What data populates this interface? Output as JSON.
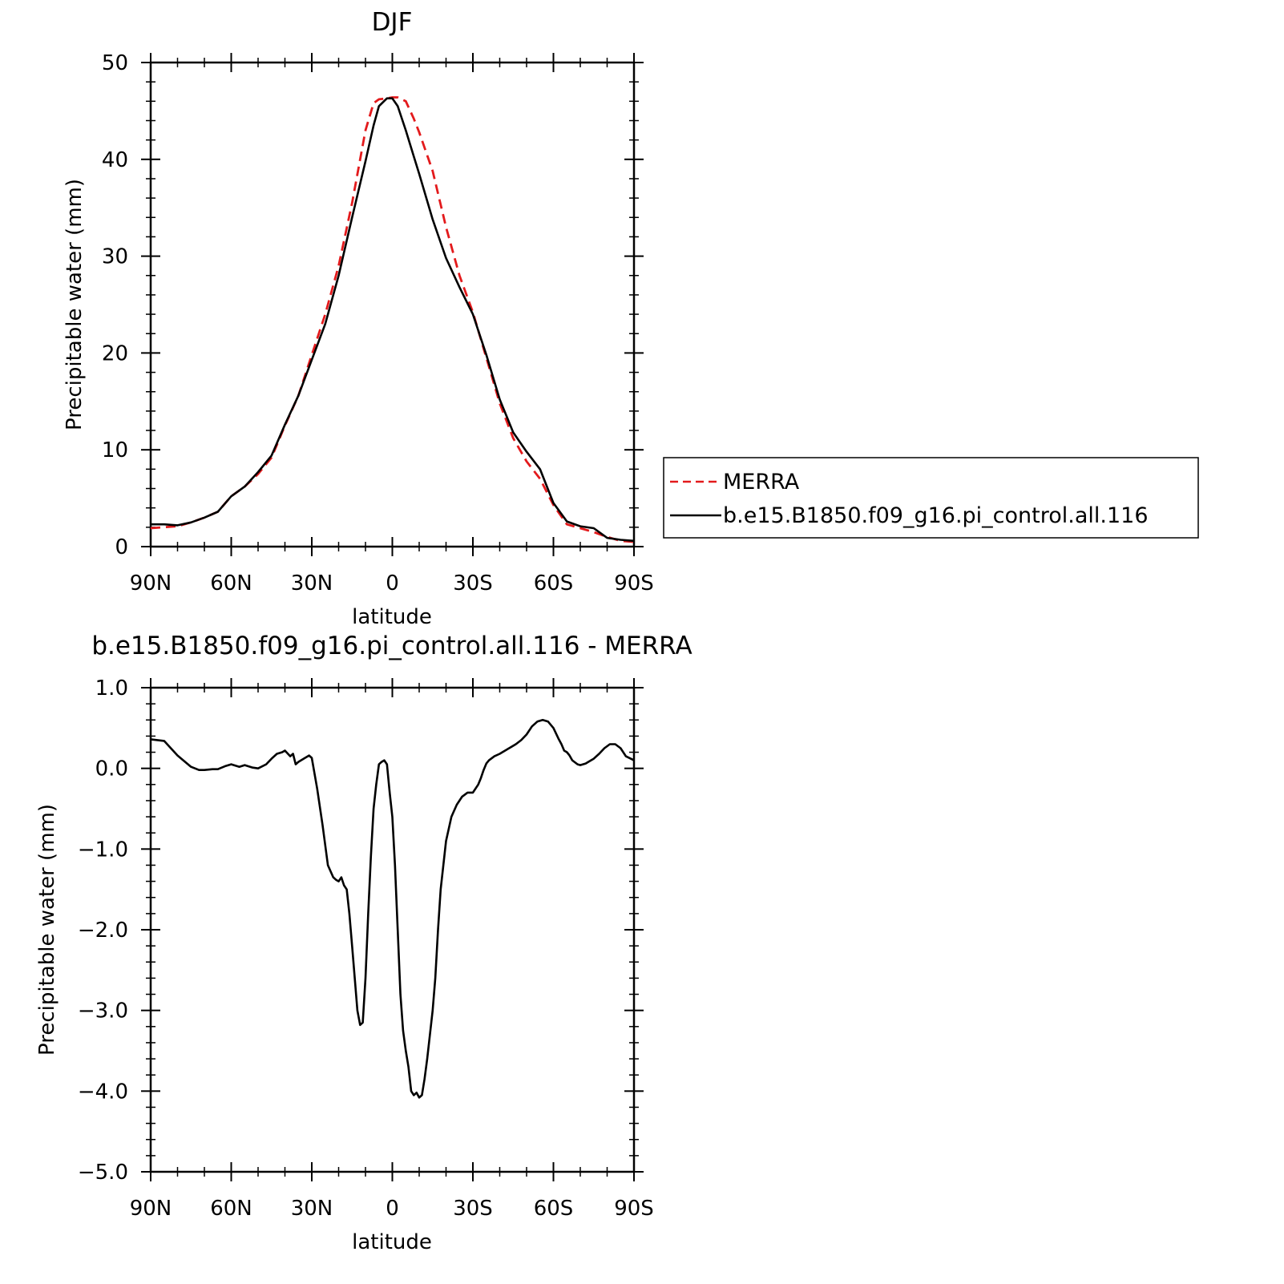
{
  "chart_data": [
    {
      "type": "line",
      "title": "DJF",
      "xlabel": "latitude",
      "ylabel": "Precipitable water (mm)",
      "xlim": [
        90,
        -90
      ],
      "ylim": [
        0,
        50
      ],
      "xticks": [
        90,
        60,
        30,
        0,
        -30,
        -60,
        -90
      ],
      "xtick_labels": [
        "90N",
        "60N",
        "30N",
        "0",
        "30S",
        "60S",
        "90S"
      ],
      "yticks": [
        0,
        10,
        20,
        30,
        40,
        50
      ],
      "ytick_labels": [
        "0",
        "10",
        "20",
        "30",
        "40",
        "50"
      ],
      "legend_position": "right",
      "series": [
        {
          "name": "MERRA",
          "color": "#e31a1c",
          "dash": true,
          "x": [
            90,
            85,
            80,
            75,
            70,
            65,
            60,
            55,
            50,
            45,
            40,
            35,
            30,
            25,
            20,
            15,
            10,
            7,
            5,
            2,
            0,
            -2,
            -5,
            -8,
            -10,
            -15,
            -20,
            -25,
            -30,
            -35,
            -40,
            -45,
            -50,
            -55,
            -60,
            -65,
            -70,
            -75,
            -80,
            -85,
            -90
          ],
          "y": [
            1.9,
            2.0,
            2.1,
            2.5,
            3.0,
            3.6,
            5.2,
            6.2,
            7.5,
            9.2,
            12.5,
            15.6,
            19.8,
            24.0,
            29.0,
            35.5,
            43.0,
            45.8,
            46.2,
            46.3,
            46.4,
            46.4,
            46.0,
            44.2,
            42.8,
            38.8,
            33.0,
            28.0,
            24.2,
            19.5,
            14.8,
            11.2,
            8.8,
            7.0,
            4.3,
            2.3,
            1.9,
            1.5,
            1.0,
            0.6,
            0.5
          ]
        },
        {
          "name": "b.e15.B1850.f09_g16.pi_control.all.116",
          "color": "#000000",
          "dash": false,
          "x": [
            90,
            85,
            80,
            75,
            70,
            65,
            60,
            55,
            50,
            45,
            40,
            35,
            30,
            25,
            20,
            15,
            10,
            7,
            5,
            2,
            0,
            -2,
            -5,
            -8,
            -10,
            -15,
            -20,
            -25,
            -30,
            -35,
            -40,
            -45,
            -50,
            -55,
            -60,
            -65,
            -70,
            -75,
            -80,
            -85,
            -90
          ],
          "y": [
            2.3,
            2.3,
            2.2,
            2.5,
            3.0,
            3.6,
            5.2,
            6.2,
            7.7,
            9.4,
            12.6,
            15.6,
            19.3,
            23.0,
            28.0,
            34.0,
            39.8,
            43.5,
            45.5,
            46.3,
            46.3,
            45.5,
            43.0,
            40.3,
            38.5,
            33.8,
            29.8,
            26.8,
            24.0,
            19.8,
            15.2,
            11.8,
            9.8,
            8.0,
            4.5,
            2.6,
            2.1,
            1.9,
            0.9,
            0.7,
            0.6
          ]
        }
      ]
    },
    {
      "type": "line",
      "title": "b.e15.B1850.f09_g16.pi_control.all.116 - MERRA",
      "xlabel": "latitude",
      "ylabel": "Precipitable water (mm)",
      "xlim": [
        90,
        -90
      ],
      "ylim": [
        -5.0,
        1.0
      ],
      "xticks": [
        90,
        60,
        30,
        0,
        -30,
        -60,
        -90
      ],
      "xtick_labels": [
        "90N",
        "60N",
        "30N",
        "0",
        "30S",
        "60S",
        "90S"
      ],
      "yticks": [
        1.0,
        0.0,
        -1.0,
        -2.0,
        -3.0,
        -4.0,
        -5.0
      ],
      "ytick_labels": [
        "1.0",
        "0.0",
        "−1.0",
        "−2.0",
        "−3.0",
        "−4.0",
        "−5.0"
      ],
      "series": [
        {
          "color": "#000000",
          "dash": false,
          "x": [
            90,
            85,
            80,
            75,
            72,
            70,
            67,
            65,
            62,
            60,
            57,
            55,
            52,
            50,
            47,
            45,
            43,
            41,
            40,
            38,
            37,
            36,
            35,
            33,
            31,
            30,
            28,
            26,
            24,
            22,
            21,
            20,
            19,
            18,
            17,
            16,
            15,
            14,
            13,
            12,
            11,
            10,
            9,
            8,
            7,
            6,
            5,
            4,
            3,
            2,
            1,
            0,
            -1,
            -2,
            -3,
            -4,
            -5,
            -6,
            -7,
            -8,
            -9,
            -10,
            -11,
            -12,
            -13,
            -14,
            -15,
            -16,
            -17,
            -18,
            -20,
            -22,
            -24,
            -26,
            -28,
            -30,
            -32,
            -33,
            -34,
            -35,
            -36,
            -38,
            -40,
            -41,
            -42,
            -44,
            -46,
            -48,
            -50,
            -52,
            -54,
            -56,
            -58,
            -60,
            -62,
            -63,
            -64,
            -65,
            -66,
            -67,
            -69,
            -70,
            -72,
            -73,
            -75,
            -77,
            -79,
            -81,
            -83,
            -85,
            -87,
            -90
          ],
          "y": [
            0.36,
            0.34,
            0.16,
            0.02,
            -0.02,
            -0.02,
            -0.01,
            -0.01,
            0.03,
            0.05,
            0.02,
            0.04,
            0.01,
            0.0,
            0.05,
            0.12,
            0.18,
            0.2,
            0.22,
            0.15,
            0.18,
            0.05,
            0.08,
            0.12,
            0.16,
            0.13,
            -0.25,
            -0.7,
            -1.2,
            -1.35,
            -1.38,
            -1.4,
            -1.35,
            -1.45,
            -1.5,
            -1.8,
            -2.2,
            -2.6,
            -3.0,
            -3.18,
            -3.15,
            -2.6,
            -1.8,
            -1.1,
            -0.5,
            -0.2,
            0.05,
            0.08,
            0.1,
            0.05,
            -0.3,
            -0.6,
            -1.2,
            -2.0,
            -2.8,
            -3.25,
            -3.5,
            -3.7,
            -4.0,
            -4.05,
            -4.02,
            -4.08,
            -4.05,
            -3.85,
            -3.6,
            -3.3,
            -3.0,
            -2.6,
            -2.0,
            -1.5,
            -0.9,
            -0.6,
            -0.45,
            -0.35,
            -0.3,
            -0.3,
            -0.2,
            -0.12,
            -0.02,
            0.06,
            0.1,
            0.15,
            0.18,
            0.2,
            0.22,
            0.26,
            0.3,
            0.35,
            0.42,
            0.52,
            0.58,
            0.6,
            0.58,
            0.5,
            0.36,
            0.3,
            0.22,
            0.2,
            0.16,
            0.1,
            0.05,
            0.04,
            0.06,
            0.08,
            0.12,
            0.18,
            0.25,
            0.3,
            0.3,
            0.25,
            0.15,
            0.1
          ]
        }
      ]
    }
  ]
}
